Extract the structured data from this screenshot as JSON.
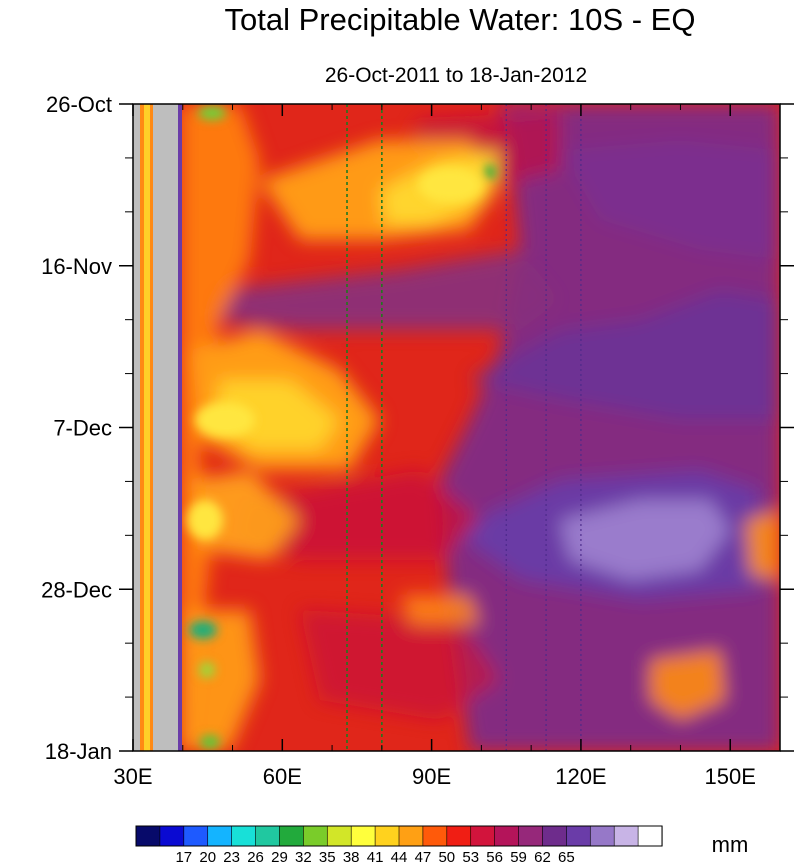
{
  "chart_data": {
    "type": "heatmap",
    "title": "Total Precipitable Water: 10S - EQ",
    "subtitle": "26-Oct-2011 to 18-Jan-2012",
    "x_axis": {
      "range": [
        30,
        160
      ],
      "unit": "degrees east longitude",
      "major_ticks": [
        30,
        60,
        90,
        120,
        150
      ],
      "tick_labels": [
        "30E",
        "60E",
        "90E",
        "120E",
        "150E"
      ]
    },
    "y_axis": {
      "range": [
        "2011-10-26",
        "2012-01-18"
      ],
      "direction": "time increases downward",
      "tick_labels": [
        "26-Oct",
        "16-Nov",
        "7-Dec",
        "28-Dec",
        "18-Jan"
      ]
    },
    "colorbar": {
      "unit": "mm",
      "levels": [
        17,
        20,
        23,
        26,
        29,
        32,
        35,
        38,
        41,
        44,
        47,
        50,
        53,
        56,
        59,
        62,
        65
      ],
      "colors": [
        "#070a6a",
        "#0a0ad2",
        "#1e5aff",
        "#14b4ff",
        "#18e0d8",
        "#20c8a0",
        "#22aa3c",
        "#7acc2a",
        "#d2e628",
        "#ffff3c",
        "#ffd21e",
        "#ffa014",
        "#ff5a0a",
        "#f01e14",
        "#d2143c",
        "#b4145a",
        "#96287a",
        "#6e2c8c",
        "#6a3ca8",
        "#9678c8",
        "#c8b4e6",
        "#ffffff"
      ]
    },
    "grid": false,
    "reference_lines": {
      "style": "dotted vertical",
      "green": [
        73,
        80
      ],
      "purple": [
        105,
        113,
        120
      ]
    },
    "land_mask_bands_east": [
      [
        30,
        31.5
      ],
      [
        34,
        39
      ]
    ],
    "data_description": [
      {
        "feature": "low values 44-50 mm (yellow/orange)",
        "where": "40E-75E throughout period; 70E-105E streak early November"
      },
      {
        "feature": "high values 59-65 mm (purple/lavender)",
        "where": "95E-160E, peaking 115E-150E mid-to-late December"
      },
      {
        "feature": "moderate values 53-56 mm (red)",
        "where": "transition zone 75E-100E"
      }
    ]
  }
}
